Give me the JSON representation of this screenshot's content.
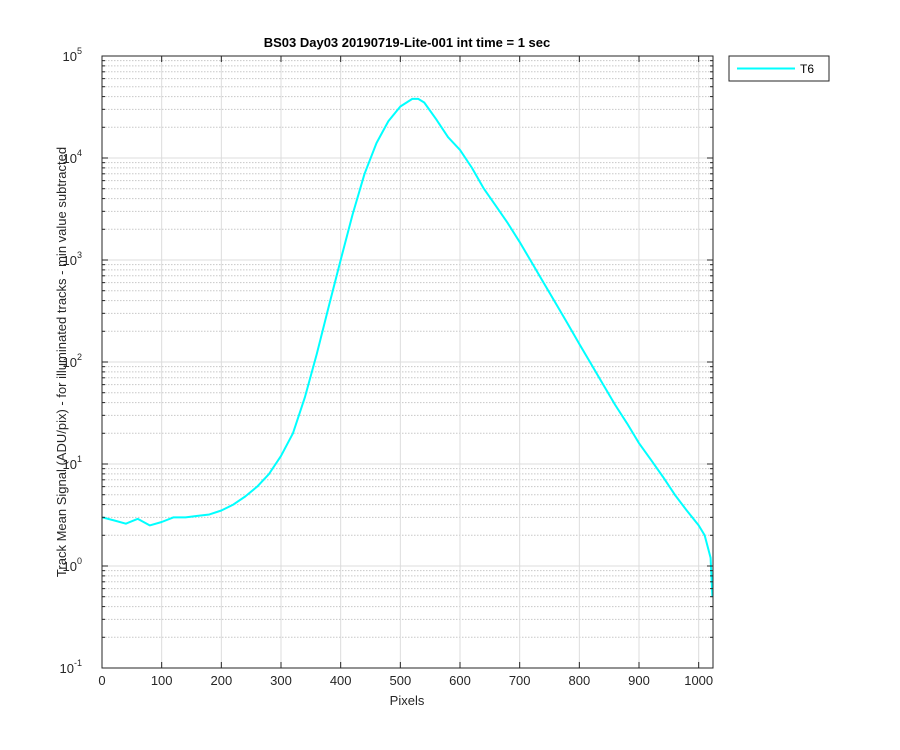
{
  "chart_data": {
    "type": "line",
    "title": "BS03 Day03 20190719-Lite-001 int time = 1 sec",
    "xlabel": "Pixels",
    "ylabel": "Track Mean Signal (ADU/pix) - for illuminated tracks - min value subtracted",
    "xlim": [
      0,
      1024
    ],
    "ylim": [
      0.1,
      100000
    ],
    "yscale": "log",
    "grid": true,
    "minor_grid": true,
    "legend_position": "outside-top-right",
    "x_ticks": [
      "0",
      "100",
      "200",
      "300",
      "400",
      "500",
      "600",
      "700",
      "800",
      "900",
      "1000"
    ],
    "y_ticks": [
      {
        "base": "10",
        "exp": "-1"
      },
      {
        "base": "10",
        "exp": "0"
      },
      {
        "base": "10",
        "exp": "1"
      },
      {
        "base": "10",
        "exp": "2"
      },
      {
        "base": "10",
        "exp": "3"
      },
      {
        "base": "10",
        "exp": "4"
      },
      {
        "base": "10",
        "exp": "5"
      }
    ],
    "series": [
      {
        "name": "T6",
        "color": "#00ffff",
        "x": [
          0,
          20,
          40,
          60,
          80,
          100,
          120,
          140,
          160,
          180,
          200,
          220,
          240,
          260,
          280,
          300,
          320,
          340,
          360,
          380,
          400,
          420,
          440,
          460,
          480,
          500,
          520,
          530,
          540,
          560,
          580,
          600,
          620,
          640,
          660,
          680,
          700,
          720,
          740,
          760,
          780,
          800,
          820,
          840,
          860,
          880,
          900,
          920,
          940,
          960,
          980,
          1000,
          1010,
          1020,
          1023
        ],
        "y": [
          3.0,
          2.8,
          2.6,
          2.9,
          2.5,
          2.7,
          3.0,
          3.0,
          3.1,
          3.2,
          3.5,
          4.0,
          4.8,
          6.0,
          8.0,
          12,
          20,
          45,
          120,
          350,
          1000,
          2800,
          7000,
          14000,
          23000,
          32000,
          38000,
          38000,
          35000,
          24000,
          16000,
          12000,
          8000,
          5000,
          3400,
          2300,
          1500,
          950,
          600,
          380,
          240,
          150,
          95,
          60,
          38,
          25,
          16,
          11,
          7.5,
          5.0,
          3.5,
          2.5,
          2.0,
          1.2,
          0.5
        ]
      }
    ]
  }
}
